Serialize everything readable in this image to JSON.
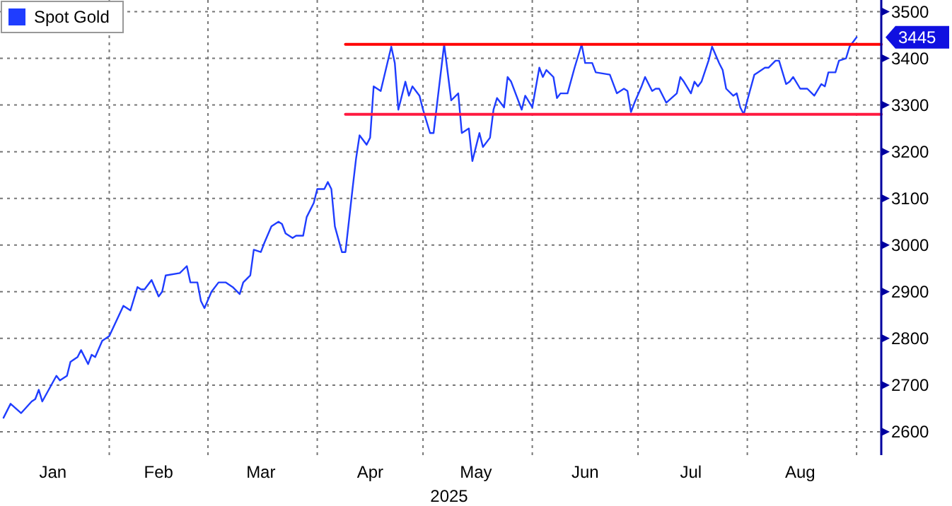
{
  "chart_data": {
    "type": "line",
    "xlabel": "2025",
    "legend": "top left",
    "grid": true,
    "marker": "none",
    "line_style": "solid",
    "xlim": [
      "2025-01-01",
      "2025-09-08"
    ],
    "xticks": [
      {
        "value": "2025-01-16",
        "label": "Jan"
      },
      {
        "value": "2025-02-01",
        "label": null
      },
      {
        "value": "2025-02-15",
        "label": "Feb"
      },
      {
        "value": "2025-03-01",
        "label": null
      },
      {
        "value": "2025-03-16",
        "label": "Mar"
      },
      {
        "value": "2025-04-01",
        "label": null
      },
      {
        "value": "2025-04-16",
        "label": "Apr"
      },
      {
        "value": "2025-05-01",
        "label": null
      },
      {
        "value": "2025-05-16",
        "label": "May"
      },
      {
        "value": "2025-06-01",
        "label": null
      },
      {
        "value": "2025-06-16",
        "label": "Jun"
      },
      {
        "value": "2025-07-01",
        "label": null
      },
      {
        "value": "2025-07-16",
        "label": "Jul"
      },
      {
        "value": "2025-08-01",
        "label": null
      },
      {
        "value": "2025-08-16",
        "label": "Aug"
      },
      {
        "value": "2025-09-01",
        "label": null
      }
    ],
    "ylim": [
      2550,
      3525
    ],
    "yticks": [
      2600,
      2700,
      2800,
      2900,
      3000,
      3100,
      3200,
      3300,
      3400,
      3500
    ],
    "annotations": [
      "3445"
    ],
    "series": [
      {
        "name": "Spot Gold",
        "color": "#1f3dff",
        "x": [
          "2025-01-02",
          "2025-01-04",
          "2025-01-07",
          "2025-01-10",
          "2025-01-11",
          "2025-01-12",
          "2025-01-13",
          "2025-01-17",
          "2025-01-18",
          "2025-01-20",
          "2025-01-21",
          "2025-01-23",
          "2025-01-24",
          "2025-01-26",
          "2025-01-27",
          "2025-01-28",
          "2025-01-30",
          "2025-02-01",
          "2025-02-05",
          "2025-02-07",
          "2025-02-09",
          "2025-02-10",
          "2025-02-11",
          "2025-02-13",
          "2025-02-15",
          "2025-02-16",
          "2025-02-17",
          "2025-02-21",
          "2025-02-23",
          "2025-02-24",
          "2025-02-26",
          "2025-02-27",
          "2025-02-28",
          "2025-03-02",
          "2025-03-04",
          "2025-03-06",
          "2025-03-08",
          "2025-03-10",
          "2025-03-11",
          "2025-03-13",
          "2025-03-14",
          "2025-03-16",
          "2025-03-17",
          "2025-03-19",
          "2025-03-21",
          "2025-03-22",
          "2025-03-23",
          "2025-03-25",
          "2025-03-26",
          "2025-03-28",
          "2025-03-29",
          "2025-03-31",
          "2025-04-01",
          "2025-04-03",
          "2025-04-04",
          "2025-04-05",
          "2025-04-06",
          "2025-04-08",
          "2025-04-09",
          "2025-04-11",
          "2025-04-12",
          "2025-04-13",
          "2025-04-15",
          "2025-04-16",
          "2025-04-17",
          "2025-04-19",
          "2025-04-22",
          "2025-04-23",
          "2025-04-24",
          "2025-04-26",
          "2025-04-27",
          "2025-04-28",
          "2025-04-30",
          "2025-05-01",
          "2025-05-03",
          "2025-05-04",
          "2025-05-07",
          "2025-05-09",
          "2025-05-11",
          "2025-05-12",
          "2025-05-14",
          "2025-05-15",
          "2025-05-17",
          "2025-05-18",
          "2025-05-20",
          "2025-05-21",
          "2025-05-22",
          "2025-05-24",
          "2025-05-25",
          "2025-05-26",
          "2025-05-29",
          "2025-05-30",
          "2025-06-01",
          "2025-06-03",
          "2025-06-04",
          "2025-06-05",
          "2025-06-07",
          "2025-06-08",
          "2025-06-09",
          "2025-06-11",
          "2025-06-13",
          "2025-06-15",
          "2025-06-16",
          "2025-06-18",
          "2025-06-19",
          "2025-06-23",
          "2025-06-25",
          "2025-06-27",
          "2025-06-28",
          "2025-06-29",
          "2025-06-30",
          "2025-07-02",
          "2025-07-03",
          "2025-07-05",
          "2025-07-06",
          "2025-07-07",
          "2025-07-09",
          "2025-07-12",
          "2025-07-13",
          "2025-07-14",
          "2025-07-16",
          "2025-07-17",
          "2025-07-18",
          "2025-07-19",
          "2025-07-21",
          "2025-07-22",
          "2025-07-24",
          "2025-07-25",
          "2025-07-26",
          "2025-07-28",
          "2025-07-29",
          "2025-07-30",
          "2025-07-31",
          "2025-08-01",
          "2025-08-03",
          "2025-08-04",
          "2025-08-06",
          "2025-08-07",
          "2025-08-09",
          "2025-08-10",
          "2025-08-12",
          "2025-08-13",
          "2025-08-14",
          "2025-08-16",
          "2025-08-18",
          "2025-08-20",
          "2025-08-22",
          "2025-08-23",
          "2025-08-24",
          "2025-08-26",
          "2025-08-27",
          "2025-08-29",
          "2025-08-30",
          "2025-09-01"
        ],
        "values": [
          2630,
          2660,
          2640,
          2665,
          2670,
          2690,
          2665,
          2720,
          2710,
          2720,
          2750,
          2760,
          2775,
          2745,
          2765,
          2760,
          2795,
          2805,
          2870,
          2860,
          2910,
          2905,
          2905,
          2925,
          2890,
          2900,
          2935,
          2940,
          2955,
          2920,
          2920,
          2880,
          2865,
          2900,
          2920,
          2920,
          2910,
          2895,
          2920,
          2935,
          2990,
          2985,
          3005,
          3040,
          3050,
          3045,
          3025,
          3015,
          3020,
          3020,
          3060,
          3090,
          3120,
          3120,
          3135,
          3120,
          3040,
          2985,
          2985,
          3120,
          3185,
          3235,
          3215,
          3230,
          3340,
          3330,
          3425,
          3390,
          3290,
          3350,
          3320,
          3340,
          3320,
          3290,
          3240,
          3240,
          3430,
          3310,
          3325,
          3240,
          3250,
          3180,
          3240,
          3210,
          3230,
          3290,
          3315,
          3295,
          3360,
          3350,
          3290,
          3320,
          3295,
          3380,
          3360,
          3375,
          3360,
          3315,
          3325,
          3325,
          3380,
          3430,
          3390,
          3390,
          3370,
          3365,
          3325,
          3335,
          3330,
          3285,
          3305,
          3340,
          3360,
          3330,
          3335,
          3335,
          3305,
          3325,
          3360,
          3350,
          3325,
          3350,
          3340,
          3350,
          3395,
          3425,
          3390,
          3375,
          3335,
          3320,
          3325,
          3295,
          3280,
          3310,
          3365,
          3370,
          3380,
          3380,
          3395,
          3395,
          3345,
          3350,
          3360,
          3335,
          3335,
          3320,
          3345,
          3340,
          3370,
          3370,
          3395,
          3400,
          3425,
          3445
        ]
      },
      {
        "color": "#ff0000",
        "x": [
          "2025-04-09",
          "2025-09-08"
        ],
        "values": [
          3430,
          3430
        ]
      },
      {
        "color": "#ff1a40",
        "x": [
          "2025-04-09",
          "2025-09-08"
        ],
        "values": [
          3280,
          3280
        ]
      }
    ]
  }
}
